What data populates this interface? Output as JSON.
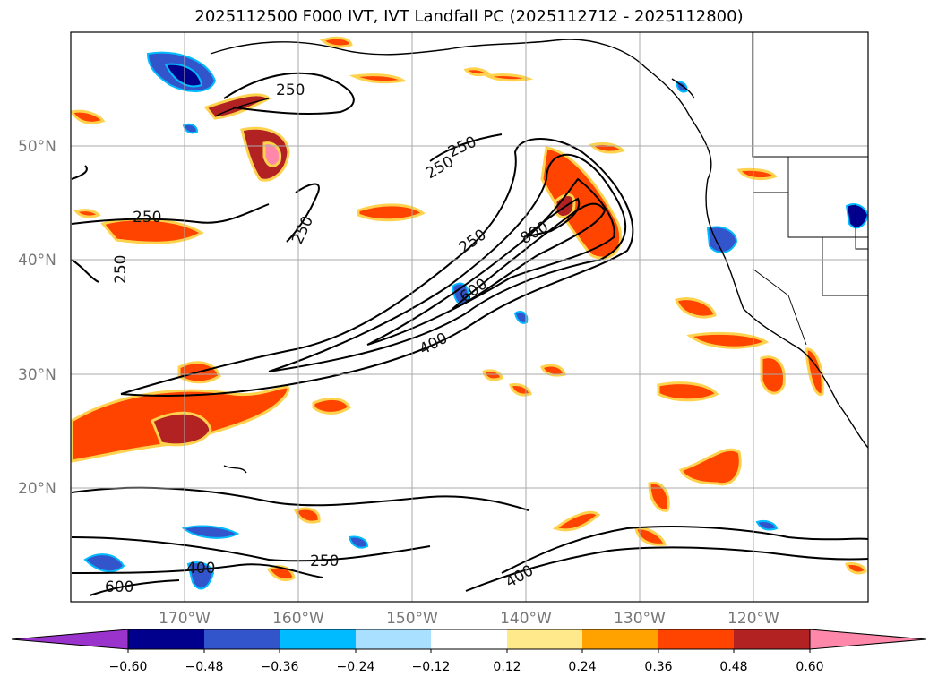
{
  "title": "2025112500 F000 IVT, IVT Landfall PC (2025112712 - 2025112800)",
  "map": {
    "lat_labels": [
      "50°N",
      "40°N",
      "30°N",
      "20°N"
    ],
    "lon_labels": [
      "170°W",
      "160°W",
      "150°W",
      "140°W",
      "130°W",
      "120°W"
    ],
    "extent": {
      "lon_min": -180,
      "lon_max": -110,
      "lat_min": 10,
      "lat_max": 60
    }
  },
  "contours": {
    "labels": [
      "250",
      "250",
      "250",
      "250",
      "250",
      "250",
      "250",
      "800",
      "600",
      "400",
      "400",
      "250",
      "400",
      "600"
    ]
  },
  "colorbar": {
    "ticks": [
      "−0.60",
      "−0.48",
      "−0.36",
      "−0.24",
      "−0.12",
      "0.12",
      "0.24",
      "0.36",
      "0.48",
      "0.60"
    ],
    "colors": {
      "under": "#9a33cc",
      "c1": "#00008c",
      "c2": "#3355cc",
      "c3": "#00bbff",
      "c4": "#aae0ff",
      "c5": "#ffffff",
      "c6": "#ffe98a",
      "c7": "#ffa200",
      "c8": "#ff4400",
      "c9": "#b22222",
      "over": "#ff88aa"
    }
  }
}
